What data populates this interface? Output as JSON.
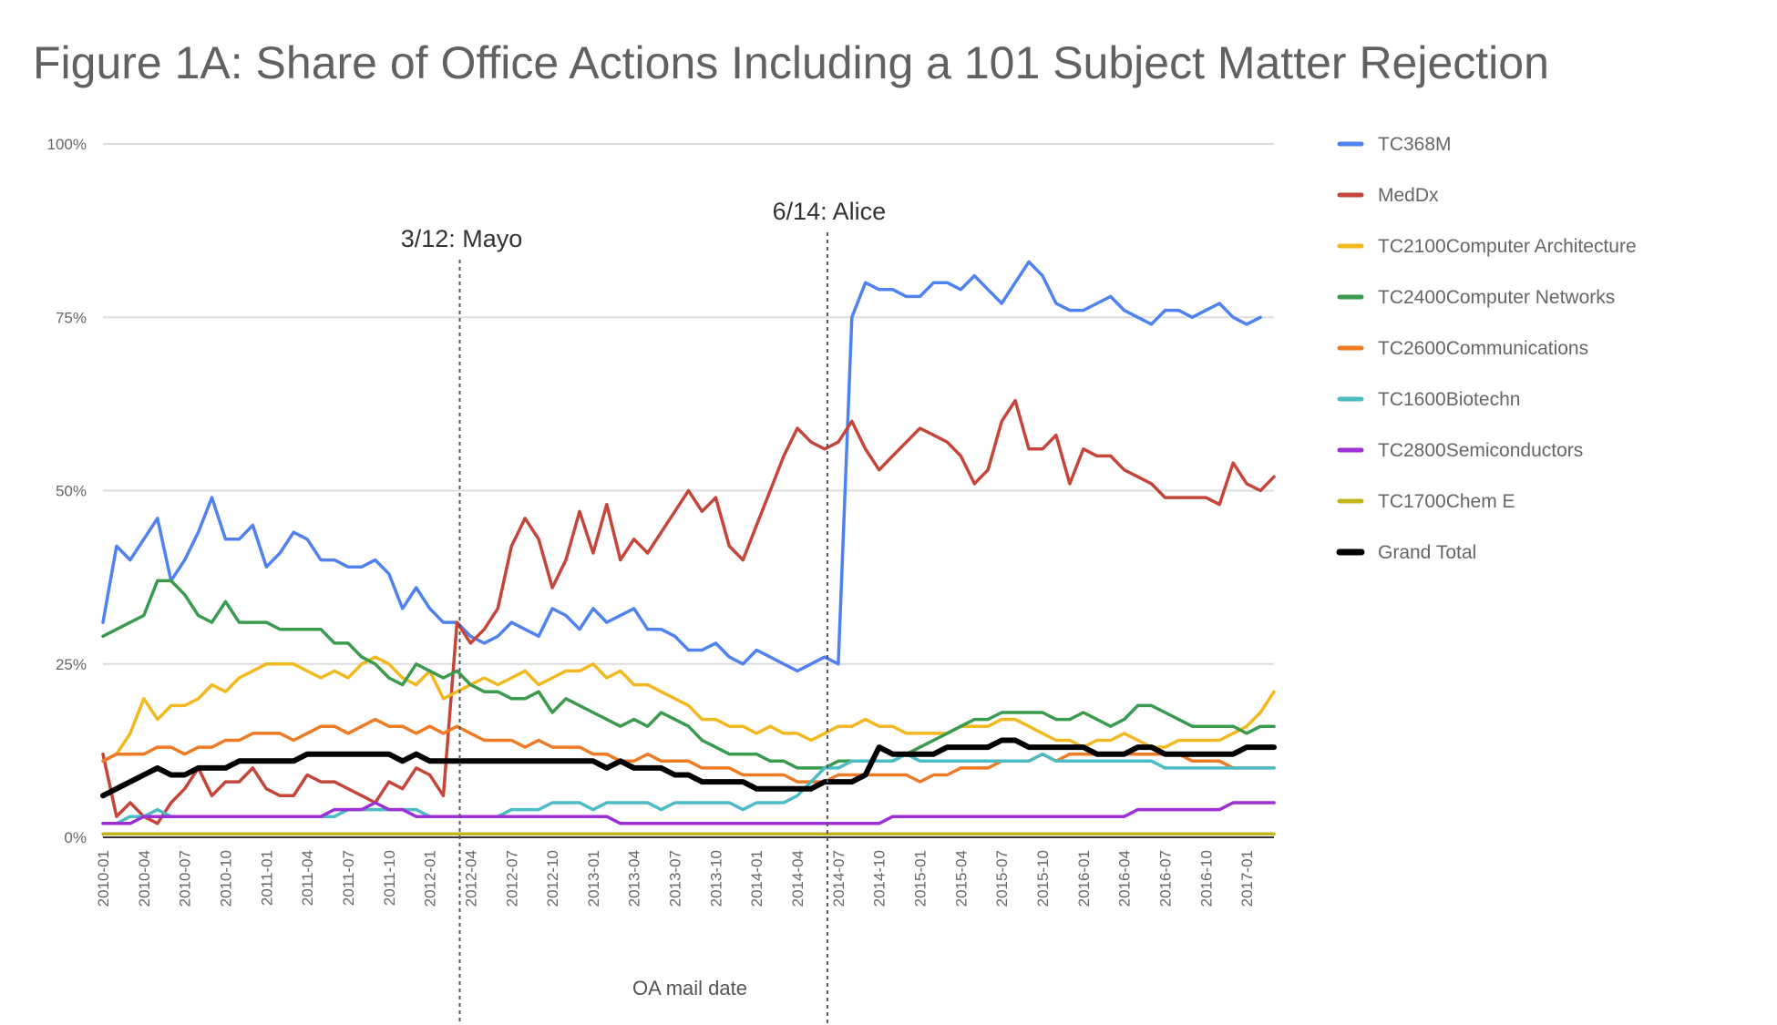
{
  "chart_data": {
    "type": "line",
    "title": "Figure 1A: Share of Office Actions Including a 101 Subject Matter Rejection",
    "xlabel": "OA mail date",
    "ylabel": "",
    "ylim": [
      0,
      100
    ],
    "y_ticks": [
      "0%",
      "25%",
      "50%",
      "75%",
      "100%"
    ],
    "x_ticks": [
      "2010-01",
      "2010-04",
      "2010-07",
      "2010-10",
      "2011-01",
      "2011-04",
      "2011-07",
      "2011-10",
      "2012-01",
      "2012-04",
      "2012-07",
      "2012-10",
      "2013-01",
      "2013-04",
      "2013-07",
      "2013-10",
      "2014-01",
      "2014-04",
      "2014-07",
      "2014-10",
      "2015-01",
      "2015-04",
      "2015-07",
      "2015-10",
      "2016-01",
      "2016-04",
      "2016-07",
      "2016-10",
      "2017-01"
    ],
    "grid": true,
    "legend_position": "right",
    "annotations": [
      {
        "label": "3/12: Mayo",
        "x": "2012-03"
      },
      {
        "label": "6/14: Alice",
        "x": "2014-06"
      }
    ],
    "series": [
      {
        "name": "TC368M",
        "color": "#4f81f0",
        "values": [
          31,
          42,
          40,
          43,
          46,
          37,
          40,
          44,
          49,
          43,
          43,
          45,
          39,
          41,
          44,
          43,
          40,
          40,
          39,
          39,
          40,
          38,
          33,
          36,
          33,
          31,
          31,
          29,
          28,
          29,
          31,
          30,
          29,
          33,
          32,
          30,
          33,
          31,
          32,
          33,
          30,
          30,
          29,
          27,
          27,
          28,
          26,
          25,
          27,
          26,
          25,
          24,
          25,
          26,
          25,
          75,
          80,
          79,
          79,
          78,
          78,
          80,
          80,
          79,
          81,
          79,
          77,
          80,
          83,
          81,
          77,
          76,
          76,
          77,
          78,
          76,
          75,
          74,
          76,
          76,
          75,
          76,
          77,
          75,
          74,
          75
        ]
      },
      {
        "name": "MedDx",
        "color": "#c5453a",
        "values": [
          12,
          3,
          5,
          3,
          2,
          5,
          7,
          10,
          6,
          8,
          8,
          10,
          7,
          6,
          6,
          9,
          8,
          8,
          7,
          6,
          5,
          8,
          7,
          10,
          9,
          6,
          31,
          28,
          30,
          33,
          42,
          46,
          43,
          36,
          40,
          47,
          41,
          48,
          40,
          43,
          41,
          44,
          47,
          50,
          47,
          49,
          42,
          40,
          45,
          50,
          55,
          59,
          57,
          56,
          57,
          60,
          56,
          53,
          55,
          57,
          59,
          58,
          57,
          55,
          51,
          53,
          60,
          63,
          56,
          56,
          58,
          51,
          56,
          55,
          55,
          53,
          52,
          51,
          49,
          49,
          49,
          49,
          48,
          54,
          51,
          50,
          52
        ]
      },
      {
        "name": "TC2100Computer Architecture",
        "color": "#f2b820",
        "values": [
          11,
          12,
          15,
          20,
          17,
          19,
          19,
          20,
          22,
          21,
          23,
          24,
          25,
          25,
          25,
          24,
          23,
          24,
          23,
          25,
          26,
          25,
          23,
          22,
          24,
          20,
          21,
          22,
          23,
          22,
          23,
          24,
          22,
          23,
          24,
          24,
          25,
          23,
          24,
          22,
          22,
          21,
          20,
          19,
          17,
          17,
          16,
          16,
          15,
          16,
          15,
          15,
          14,
          15,
          16,
          16,
          17,
          16,
          16,
          15,
          15,
          15,
          15,
          16,
          16,
          16,
          17,
          17,
          16,
          15,
          14,
          14,
          13,
          14,
          14,
          15,
          14,
          13,
          13,
          14,
          14,
          14,
          14,
          15,
          16,
          18,
          21
        ]
      },
      {
        "name": "TC2400Computer Networks",
        "color": "#3a9a4d",
        "values": [
          29,
          30,
          31,
          32,
          37,
          37,
          35,
          32,
          31,
          34,
          31,
          31,
          31,
          30,
          30,
          30,
          30,
          28,
          28,
          26,
          25,
          23,
          22,
          25,
          24,
          23,
          24,
          22,
          21,
          21,
          20,
          20,
          21,
          18,
          20,
          19,
          18,
          17,
          16,
          17,
          16,
          18,
          17,
          16,
          14,
          13,
          12,
          12,
          12,
          11,
          11,
          10,
          10,
          10,
          11,
          11,
          11,
          11,
          11,
          12,
          13,
          14,
          15,
          16,
          17,
          17,
          18,
          18,
          18,
          18,
          17,
          17,
          18,
          17,
          16,
          17,
          19,
          19,
          18,
          17,
          16,
          16,
          16,
          16,
          15,
          16,
          16
        ]
      },
      {
        "name": "TC2600Communications",
        "color": "#ef7a24",
        "values": [
          11,
          12,
          12,
          12,
          13,
          13,
          12,
          13,
          13,
          14,
          14,
          15,
          15,
          15,
          14,
          15,
          16,
          16,
          15,
          16,
          17,
          16,
          16,
          15,
          16,
          15,
          16,
          15,
          14,
          14,
          14,
          13,
          14,
          13,
          13,
          13,
          12,
          12,
          11,
          11,
          12,
          11,
          11,
          11,
          10,
          10,
          10,
          9,
          9,
          9,
          9,
          8,
          8,
          8,
          9,
          9,
          9,
          9,
          9,
          9,
          8,
          9,
          9,
          10,
          10,
          10,
          11,
          11,
          11,
          12,
          11,
          12,
          12,
          12,
          12,
          12,
          12,
          12,
          12,
          12,
          11,
          11,
          11,
          10,
          10,
          10,
          10
        ]
      },
      {
        "name": "TC1600Biotechn",
        "color": "#4bbcc4",
        "values": [
          2,
          2,
          3,
          3,
          4,
          3,
          3,
          3,
          3,
          3,
          3,
          3,
          3,
          3,
          3,
          3,
          3,
          3,
          4,
          4,
          4,
          4,
          4,
          4,
          3,
          3,
          3,
          3,
          3,
          3,
          4,
          4,
          4,
          5,
          5,
          5,
          4,
          5,
          5,
          5,
          5,
          4,
          5,
          5,
          5,
          5,
          5,
          4,
          5,
          5,
          5,
          6,
          8,
          10,
          10,
          11,
          11,
          11,
          11,
          12,
          11,
          11,
          11,
          11,
          11,
          11,
          11,
          11,
          11,
          12,
          11,
          11,
          11,
          11,
          11,
          11,
          11,
          11,
          10,
          10,
          10,
          10,
          10,
          10,
          10,
          10,
          10
        ]
      },
      {
        "name": "TC2800Semiconductors",
        "color": "#9d2fd6",
        "values": [
          2,
          2,
          2,
          3,
          3,
          3,
          3,
          3,
          3,
          3,
          3,
          3,
          3,
          3,
          3,
          3,
          3,
          4,
          4,
          4,
          5,
          4,
          4,
          3,
          3,
          3,
          3,
          3,
          3,
          3,
          3,
          3,
          3,
          3,
          3,
          3,
          3,
          3,
          2,
          2,
          2,
          2,
          2,
          2,
          2,
          2,
          2,
          2,
          2,
          2,
          2,
          2,
          2,
          2,
          2,
          2,
          2,
          2,
          3,
          3,
          3,
          3,
          3,
          3,
          3,
          3,
          3,
          3,
          3,
          3,
          3,
          3,
          3,
          3,
          3,
          3,
          4,
          4,
          4,
          4,
          4,
          4,
          4,
          5,
          5,
          5,
          5
        ]
      },
      {
        "name": "TC1700Chem E",
        "color": "#c2b51a",
        "values": [
          0.5,
          0.5,
          0.5,
          0.5,
          0.5,
          0.5,
          0.5,
          0.5,
          0.5,
          0.5,
          0.5,
          0.5,
          0.5,
          0.5,
          0.5,
          0.5,
          0.5,
          0.5,
          0.5,
          0.5,
          0.5,
          0.5,
          0.5,
          0.5,
          0.5,
          0.5,
          0.5,
          0.5,
          0.5,
          0.5,
          0.5,
          0.5,
          0.5,
          0.5,
          0.5,
          0.5,
          0.5,
          0.5,
          0.5,
          0.5,
          0.5,
          0.5,
          0.5,
          0.5,
          0.5,
          0.5,
          0.5,
          0.5,
          0.5,
          0.5,
          0.5,
          0.5,
          0.5,
          0.5,
          0.5,
          0.5,
          0.5,
          0.5,
          0.5,
          0.5,
          0.5,
          0.5,
          0.5,
          0.5,
          0.5,
          0.5,
          0.5,
          0.5,
          0.5,
          0.5,
          0.5,
          0.5,
          0.5,
          0.5,
          0.5,
          0.5,
          0.5,
          0.5,
          0.5,
          0.5,
          0.5,
          0.5,
          0.5,
          0.5,
          0.5,
          0.5,
          0.5
        ]
      },
      {
        "name": "Grand Total",
        "color": "#000000",
        "values": [
          6,
          7,
          8,
          9,
          10,
          9,
          9,
          10,
          10,
          10,
          11,
          11,
          11,
          11,
          11,
          12,
          12,
          12,
          12,
          12,
          12,
          12,
          11,
          12,
          11,
          11,
          11,
          11,
          11,
          11,
          11,
          11,
          11,
          11,
          11,
          11,
          11,
          10,
          11,
          10,
          10,
          10,
          9,
          9,
          8,
          8,
          8,
          8,
          7,
          7,
          7,
          7,
          7,
          8,
          8,
          8,
          9,
          13,
          12,
          12,
          12,
          12,
          13,
          13,
          13,
          13,
          14,
          14,
          13,
          13,
          13,
          13,
          13,
          12,
          12,
          12,
          13,
          13,
          12,
          12,
          12,
          12,
          12,
          12,
          13,
          13,
          13
        ]
      }
    ]
  }
}
